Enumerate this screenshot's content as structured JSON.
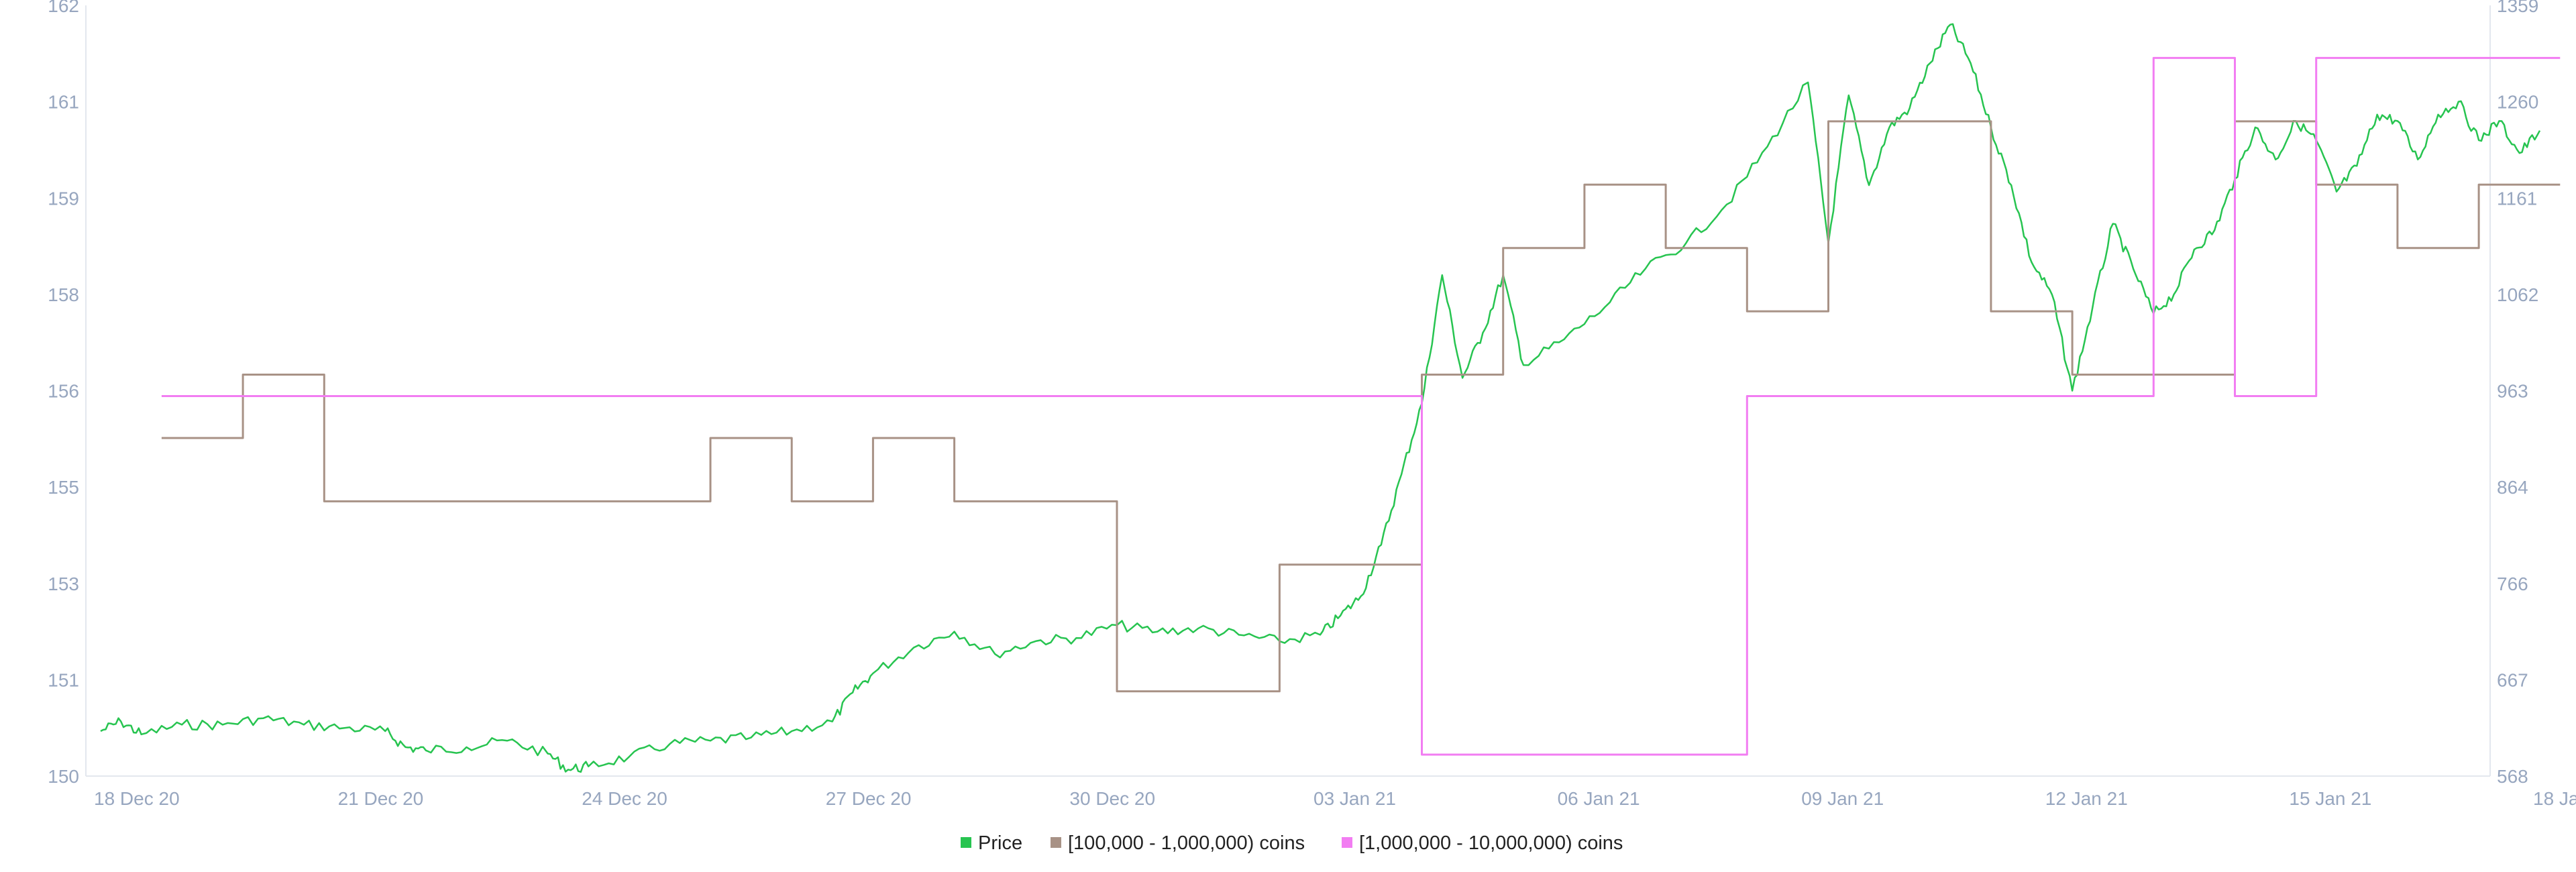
{
  "chart_data": {
    "type": "line",
    "title": "",
    "xlabel": "",
    "ylabel": "",
    "x_ticks": [
      "18 Dec 20",
      "21 Dec 20",
      "24 Dec 20",
      "27 Dec 20",
      "30 Dec 20",
      "03 Jan 21",
      "06 Jan 21",
      "09 Jan 21",
      "12 Jan 21",
      "15 Jan 21",
      "18 Jan 21"
    ],
    "x_range": [
      "2020-12-18",
      "2021-01-18"
    ],
    "y_left": {
      "ticks": [
        "150",
        "151",
        "153",
        "155",
        "156",
        "158",
        "159",
        "161",
        "162"
      ],
      "range": [
        150,
        162
      ]
    },
    "y_right": {
      "ticks": [
        "568",
        "667",
        "766",
        "864",
        "963",
        "1062",
        "1161",
        "1260",
        "1359"
      ],
      "range": [
        568,
        1359
      ]
    },
    "grid": false,
    "legend_position": "bottom",
    "series": [
      {
        "name": "Price",
        "axis": "left",
        "color": "#27c450",
        "style": "line",
        "points": [
          [
            "2020-12-18 00:00",
            150.7
          ],
          [
            "2020-12-18 06:00",
            150.85
          ],
          [
            "2020-12-18 12:00",
            150.65
          ],
          [
            "2020-12-19 00:00",
            150.8
          ],
          [
            "2020-12-19 12:00",
            150.8
          ],
          [
            "2020-12-20 00:00",
            150.9
          ],
          [
            "2020-12-20 12:00",
            150.8
          ],
          [
            "2020-12-21 00:00",
            150.75
          ],
          [
            "2020-12-21 12:00",
            150.7
          ],
          [
            "2020-12-21 18:00",
            150.45
          ],
          [
            "2020-12-22 00:00",
            150.4
          ],
          [
            "2020-12-22 12:00",
            150.45
          ],
          [
            "2020-12-23 00:00",
            150.55
          ],
          [
            "2020-12-23 12:00",
            150.35
          ],
          [
            "2020-12-23 18:00",
            150.1
          ],
          [
            "2020-12-24 00:00",
            150.15
          ],
          [
            "2020-12-24 12:00",
            150.3
          ],
          [
            "2020-12-25 00:00",
            150.5
          ],
          [
            "2020-12-25 12:00",
            150.55
          ],
          [
            "2020-12-26 00:00",
            150.6
          ],
          [
            "2020-12-26 12:00",
            150.7
          ],
          [
            "2020-12-27 00:00",
            150.85
          ],
          [
            "2020-12-27 06:00",
            151.3
          ],
          [
            "2020-12-27 12:00",
            151.6
          ],
          [
            "2020-12-28 00:00",
            152.0
          ],
          [
            "2020-12-28 12:00",
            152.25
          ],
          [
            "2020-12-29 00:00",
            151.9
          ],
          [
            "2020-12-29 12:00",
            152.1
          ],
          [
            "2020-12-30 00:00",
            152.15
          ],
          [
            "2020-12-30 12:00",
            152.35
          ],
          [
            "2020-12-31 00:00",
            152.25
          ],
          [
            "2020-12-31 12:00",
            152.3
          ],
          [
            "2021-01-01 00:00",
            152.2
          ],
          [
            "2021-01-01 12:00",
            152.1
          ],
          [
            "2021-01-02 00:00",
            152.2
          ],
          [
            "2021-01-02 06:00",
            152.5
          ],
          [
            "2021-01-02 12:00",
            152.8
          ],
          [
            "2021-01-02 18:00",
            153.6
          ],
          [
            "2021-01-03 00:00",
            154.7
          ],
          [
            "2021-01-03 06:00",
            155.8
          ],
          [
            "2021-01-03 12:00",
            157.8
          ],
          [
            "2021-01-03 18:00",
            156.2
          ],
          [
            "2021-01-04 00:00",
            156.9
          ],
          [
            "2021-01-04 06:00",
            157.8
          ],
          [
            "2021-01-04 12:00",
            156.4
          ],
          [
            "2021-01-05 00:00",
            156.8
          ],
          [
            "2021-01-05 12:00",
            157.3
          ],
          [
            "2021-01-06 00:00",
            157.9
          ],
          [
            "2021-01-06 12:00",
            158.3
          ],
          [
            "2021-01-07 00:00",
            158.9
          ],
          [
            "2021-01-07 12:00",
            159.8
          ],
          [
            "2021-01-08 00:00",
            160.8
          ],
          [
            "2021-01-08 06:00",
            158.3
          ],
          [
            "2021-01-08 12:00",
            160.6
          ],
          [
            "2021-01-08 18:00",
            159.2
          ],
          [
            "2021-01-09 00:00",
            160.1
          ],
          [
            "2021-01-09 06:00",
            160.4
          ],
          [
            "2021-01-09 12:00",
            161.1
          ],
          [
            "2021-01-09 18:00",
            161.7
          ],
          [
            "2021-01-10 00:00",
            161.1
          ],
          [
            "2021-01-10 06:00",
            160.1
          ],
          [
            "2021-01-10 12:00",
            159.2
          ],
          [
            "2021-01-10 18:00",
            158.0
          ],
          [
            "2021-01-11 00:00",
            157.5
          ],
          [
            "2021-01-11 06:00",
            156.0
          ],
          [
            "2021-01-11 12:00",
            157.3
          ],
          [
            "2021-01-11 18:00",
            158.6
          ],
          [
            "2021-01-12 00:00",
            157.9
          ],
          [
            "2021-01-12 06:00",
            157.2
          ],
          [
            "2021-01-12 12:00",
            157.5
          ],
          [
            "2021-01-12 18:00",
            158.2
          ],
          [
            "2021-01-13 00:00",
            158.5
          ],
          [
            "2021-01-13 06:00",
            159.3
          ],
          [
            "2021-01-13 12:00",
            160.1
          ],
          [
            "2021-01-13 18:00",
            159.6
          ],
          [
            "2021-01-14 00:00",
            160.2
          ],
          [
            "2021-01-14 06:00",
            159.9
          ],
          [
            "2021-01-14 12:00",
            159.1
          ],
          [
            "2021-01-14 18:00",
            159.5
          ],
          [
            "2021-01-15 00:00",
            160.3
          ],
          [
            "2021-01-15 06:00",
            160.2
          ],
          [
            "2021-01-15 12:00",
            159.6
          ],
          [
            "2021-01-15 18:00",
            160.3
          ],
          [
            "2021-01-16 00:00",
            160.5
          ],
          [
            "2021-01-16 06:00",
            159.9
          ],
          [
            "2021-01-16 12:00",
            160.2
          ],
          [
            "2021-01-16 18:00",
            159.7
          ],
          [
            "2021-01-17 00:00",
            160.05
          ]
        ]
      },
      {
        "name": "[100,000  - 1,000,000) coins",
        "axis": "right",
        "color": "#a89286",
        "style": "step",
        "points": [
          [
            "2020-12-18 18:00",
            915
          ],
          [
            "2020-12-19 18:00",
            980
          ],
          [
            "2020-12-20 18:00",
            850
          ],
          [
            "2020-12-25 12:00",
            915
          ],
          [
            "2020-12-26 12:00",
            850
          ],
          [
            "2020-12-27 12:00",
            915
          ],
          [
            "2020-12-28 12:00",
            850
          ],
          [
            "2020-12-30 12:00",
            655
          ],
          [
            "2021-01-01 12:00",
            785
          ],
          [
            "2021-01-03 06:00",
            980
          ],
          [
            "2021-01-04 06:00",
            1110
          ],
          [
            "2021-01-05 06:00",
            1175
          ],
          [
            "2021-01-06 06:00",
            1110
          ],
          [
            "2021-01-07 06:00",
            1045
          ],
          [
            "2021-01-08 06:00",
            1240
          ],
          [
            "2021-01-10 06:00",
            1045
          ],
          [
            "2021-01-11 06:00",
            980
          ],
          [
            "2021-01-13 06:00",
            1240
          ],
          [
            "2021-01-14 06:00",
            1175
          ],
          [
            "2021-01-15 06:00",
            1110
          ],
          [
            "2021-01-16 06:00",
            1175
          ],
          [
            "2021-01-17 06:00",
            1175
          ]
        ]
      },
      {
        "name": "[1,000,000 - 10,000,000) coins",
        "axis": "right",
        "color": "#f27df2",
        "style": "step",
        "points": [
          [
            "2020-12-18 18:00",
            958
          ],
          [
            "2021-01-03 06:00",
            590
          ],
          [
            "2021-01-07 06:00",
            958
          ],
          [
            "2021-01-12 06:00",
            1305
          ],
          [
            "2021-01-13 06:00",
            958
          ],
          [
            "2021-01-14 06:00",
            1305
          ],
          [
            "2021-01-17 06:00",
            1305
          ]
        ]
      }
    ]
  }
}
